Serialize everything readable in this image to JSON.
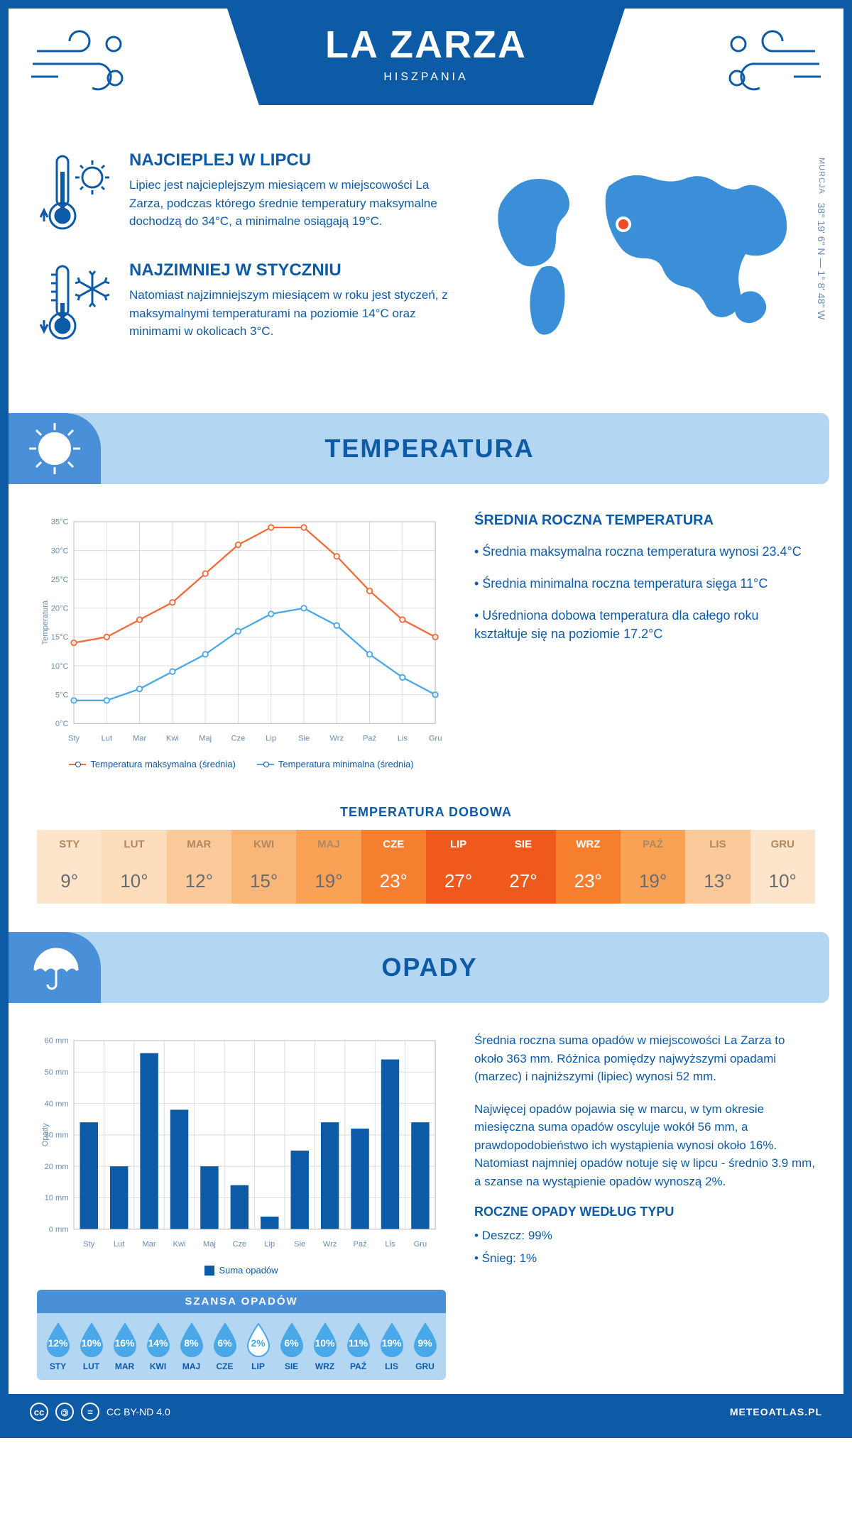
{
  "header": {
    "title": "LA ZARZA",
    "subtitle": "HISZPANIA"
  },
  "coords": {
    "region": "MURCJA",
    "lat": "38° 19' 6\" N",
    "lon": "1° 8' 48\" W"
  },
  "intro": {
    "hot": {
      "title": "NAJCIEPLEJ W LIPCU",
      "text": "Lipiec jest najcieplejszym miesiącem w miejscowości La Zarza, podczas którego średnie temperatury maksymalne dochodzą do 34°C, a minimalne osiągają 19°C."
    },
    "cold": {
      "title": "NAJZIMNIEJ W STYCZNIU",
      "text": "Natomiast najzimniejszym miesiącem w roku jest styczeń, z maksymalnymi temperaturami na poziomie 14°C oraz minimami w okolicach 3°C."
    }
  },
  "sections": {
    "temperature": "TEMPERATURA",
    "precipitation": "OPADY"
  },
  "months_short": [
    "Sty",
    "Lut",
    "Mar",
    "Kwi",
    "Maj",
    "Cze",
    "Lip",
    "Sie",
    "Wrz",
    "Paź",
    "Lis",
    "Gru"
  ],
  "months_upper": [
    "STY",
    "LUT",
    "MAR",
    "KWI",
    "MAJ",
    "CZE",
    "LIP",
    "SIE",
    "WRZ",
    "PAŹ",
    "LIS",
    "GRU"
  ],
  "temp_chart": {
    "type": "line",
    "ylabel": "Temperatura",
    "ylim": [
      0,
      35
    ],
    "ytick_step": 5,
    "ytick_suffix": "°C",
    "grid_color": "#d9d9d9",
    "background_color": "#ffffff",
    "series": [
      {
        "label": "Temperatura maksymalna (średnia)",
        "color": "#f26b3a",
        "values": [
          14,
          15,
          18,
          21,
          26,
          31,
          34,
          34,
          29,
          23,
          18,
          15
        ]
      },
      {
        "label": "Temperatura minimalna (średnia)",
        "color": "#4aa8e8",
        "values": [
          4,
          4,
          6,
          9,
          12,
          16,
          19,
          20,
          17,
          12,
          8,
          5
        ]
      }
    ]
  },
  "temp_side": {
    "title": "ŚREDNIA ROCZNA TEMPERATURA",
    "bullets": [
      "• Średnia maksymalna roczna temperatura wynosi 23.4°C",
      "• Średnia minimalna roczna temperatura sięga 11°C",
      "• Uśredniona dobowa temperatura dla całego roku kształtuje się na poziomie 17.2°C"
    ]
  },
  "daily": {
    "title": "TEMPERATURA DOBOWA",
    "values": [
      "9°",
      "10°",
      "12°",
      "15°",
      "19°",
      "23°",
      "27°",
      "27°",
      "23°",
      "19°",
      "13°",
      "10°"
    ],
    "bg_colors": [
      "#fde5cc",
      "#fcdcbb",
      "#fbc99a",
      "#fab678",
      "#f9a256",
      "#f57f2e",
      "#ef5a1c",
      "#ef5a1c",
      "#f57f2e",
      "#f9a256",
      "#fbc99a",
      "#fde5cc"
    ],
    "text_colors": [
      "#6b6b6b",
      "#6b6b6b",
      "#6b6b6b",
      "#6b6b6b",
      "#6b6b6b",
      "#ffffff",
      "#ffffff",
      "#ffffff",
      "#ffffff",
      "#6b6b6b",
      "#6b6b6b",
      "#6b6b6b"
    ],
    "header_text_colors": [
      "#b08860",
      "#b08860",
      "#b08860",
      "#b08860",
      "#b08860",
      "#ffffff",
      "#ffffff",
      "#ffffff",
      "#ffffff",
      "#b08860",
      "#b08860",
      "#b08860"
    ]
  },
  "precip_chart": {
    "type": "bar",
    "ylabel": "Opady",
    "ylim": [
      0,
      60
    ],
    "ytick_step": 10,
    "ytick_suffix": " mm",
    "bar_color": "#0d5aa7",
    "grid_color": "#d9d9d9",
    "legend": "Suma opadów",
    "values": [
      34,
      20,
      56,
      38,
      20,
      14,
      4,
      25,
      34,
      32,
      54,
      34
    ]
  },
  "precip_side": {
    "para1": "Średnia roczna suma opadów w miejscowości La Zarza to około 363 mm. Różnica pomiędzy najwyższymi opadami (marzec) i najniższymi (lipiec) wynosi 52 mm.",
    "para2": "Najwięcej opadów pojawia się w marcu, w tym okresie miesięczna suma opadów oscyluje wokół 56 mm, a prawdopodobieństwo ich wystąpienia wynosi około 16%. Natomiast najmniej opadów notuje się w lipcu - średnio 3.9 mm, a szanse na wystąpienie opadów wynoszą 2%.",
    "type_title": "ROCZNE OPADY WEDŁUG TYPU",
    "type_bullets": [
      "• Deszcz: 99%",
      "• Śnieg: 1%"
    ]
  },
  "chance": {
    "title": "SZANSA OPADÓW",
    "values": [
      "12%",
      "10%",
      "16%",
      "14%",
      "8%",
      "6%",
      "2%",
      "6%",
      "10%",
      "11%",
      "19%",
      "9%"
    ],
    "min_index": 6,
    "drop_color": "#4aa8e8",
    "drop_min_color": "#ffffff"
  },
  "footer": {
    "license": "CC BY-ND 4.0",
    "site": "METEOATLAS.PL"
  },
  "colors": {
    "primary": "#0d5aa7",
    "light": "#b3d6f2",
    "mid": "#4a90d9"
  }
}
